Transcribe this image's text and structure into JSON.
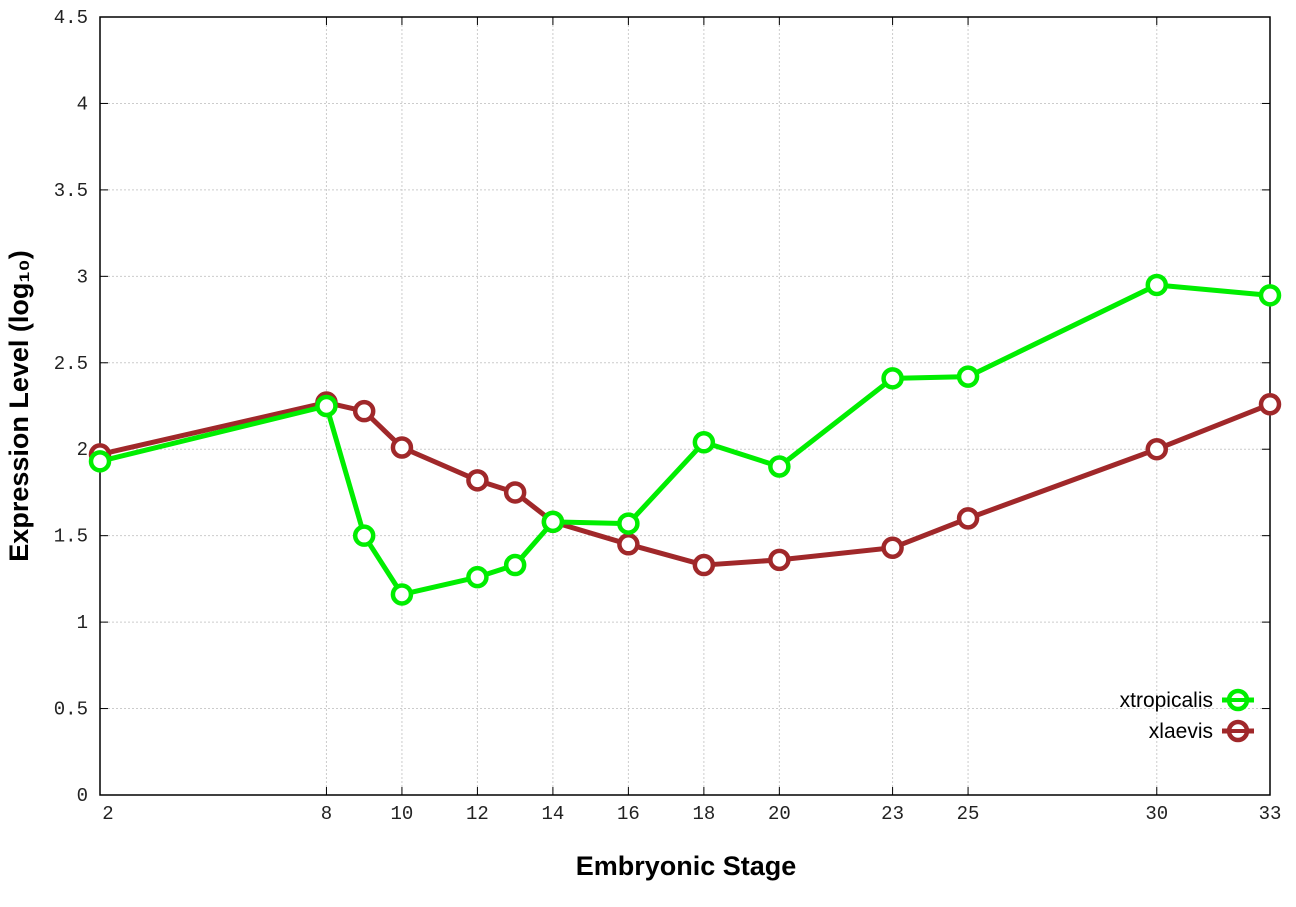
{
  "chart_data": {
    "type": "line",
    "title": "",
    "xlabel": "Embryonic Stage",
    "ylabel": "Expression Level (log₁₀)",
    "xlim": [
      2,
      33
    ],
    "ylim": [
      0,
      4.5
    ],
    "x_ticks": [
      2,
      8,
      10,
      12,
      14,
      16,
      18,
      20,
      23,
      25,
      30,
      33
    ],
    "y_ticks": [
      "0",
      "0.5",
      "1",
      "1.5",
      "2",
      "2.5",
      "3",
      "3.5",
      "4",
      "4.5"
    ],
    "grid": true,
    "legend_position": "bottom-right",
    "x": [
      2,
      8,
      9,
      10,
      12,
      13,
      14,
      16,
      18,
      20,
      23,
      25,
      30,
      33
    ],
    "series": [
      {
        "name": "xtropicalis",
        "color": "#00ee00",
        "values": [
          1.93,
          2.25,
          1.5,
          1.16,
          1.26,
          1.33,
          1.58,
          1.57,
          2.04,
          1.9,
          2.41,
          2.42,
          2.95,
          2.89
        ]
      },
      {
        "name": "xlaevis",
        "color": "#a0282a",
        "values": [
          1.97,
          2.27,
          2.22,
          2.01,
          1.82,
          1.75,
          1.58,
          1.45,
          1.33,
          1.36,
          1.43,
          1.6,
          2.0,
          2.26
        ]
      }
    ]
  }
}
